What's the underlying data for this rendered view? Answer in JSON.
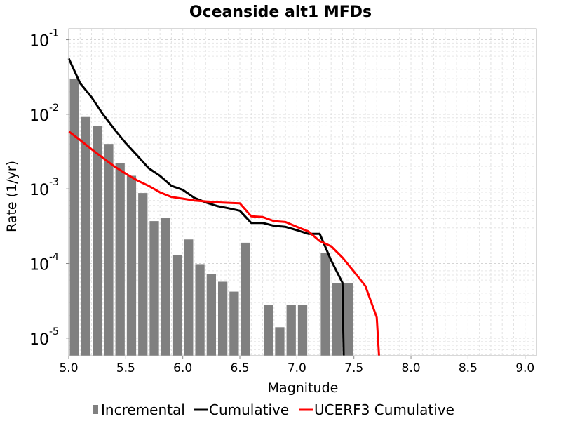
{
  "chart_data": {
    "type": "bar",
    "title": "Oceanside alt1 MFDs",
    "xlabel": "Magnitude",
    "ylabel": "Rate (1/yr)",
    "xlim": [
      5.0,
      9.1
    ],
    "ylim": [
      5.8e-06,
      0.14
    ],
    "yscale": "log",
    "grid": true,
    "legend_position": "bottom",
    "x_ticks": [
      "5.0",
      "5.5",
      "6.0",
      "6.5",
      "7.0",
      "7.5",
      "8.0",
      "8.5",
      "9.0"
    ],
    "y_ticks": [
      {
        "base": "10",
        "exp": "-1"
      },
      {
        "base": "10",
        "exp": "-2"
      },
      {
        "base": "10",
        "exp": "-3"
      },
      {
        "base": "10",
        "exp": "-4"
      },
      {
        "base": "10",
        "exp": "-5"
      }
    ],
    "series": [
      {
        "name": "Incremental",
        "kind": "bar",
        "color": "#808080",
        "x": [
          5.05,
          5.15,
          5.25,
          5.35,
          5.45,
          5.55,
          5.65,
          5.75,
          5.85,
          5.95,
          6.05,
          6.15,
          6.25,
          6.35,
          6.45,
          6.55,
          6.75,
          6.85,
          6.95,
          7.05,
          7.25,
          7.35,
          7.45
        ],
        "y": [
          0.03,
          0.0092,
          0.007,
          0.004,
          0.0022,
          0.0015,
          0.00088,
          0.00037,
          0.00041,
          0.00013,
          0.00021,
          9.8e-05,
          7.3e-05,
          5.7e-05,
          4.2e-05,
          0.00019,
          2.8e-05,
          1.4e-05,
          2.8e-05,
          2.8e-05,
          0.00014,
          5.5e-05,
          5.5e-05
        ]
      },
      {
        "name": "Cumulative",
        "kind": "line",
        "color": "#000000",
        "x": [
          5.0,
          5.1,
          5.2,
          5.3,
          5.4,
          5.5,
          5.6,
          5.7,
          5.8,
          5.9,
          6.0,
          6.1,
          6.2,
          6.3,
          6.4,
          6.5,
          6.6,
          6.7,
          6.8,
          6.9,
          7.0,
          7.1,
          7.2,
          7.3,
          7.4,
          7.41
        ],
        "y": [
          0.056,
          0.026,
          0.017,
          0.01,
          0.0063,
          0.0041,
          0.0028,
          0.0019,
          0.0015,
          0.0011,
          0.00097,
          0.00076,
          0.00066,
          0.00059,
          0.00055,
          0.00051,
          0.00035,
          0.00035,
          0.00032,
          0.00031,
          0.00028,
          0.00025,
          0.00025,
          0.00011,
          5.5e-05,
          5.5e-06
        ]
      },
      {
        "name": "UCERF3 Cumulative",
        "kind": "line",
        "color": "#ff0000",
        "x": [
          5.0,
          5.1,
          5.2,
          5.3,
          5.4,
          5.5,
          5.6,
          5.7,
          5.8,
          5.9,
          6.0,
          6.1,
          6.2,
          6.3,
          6.4,
          6.5,
          6.6,
          6.7,
          6.8,
          6.9,
          7.0,
          7.1,
          7.2,
          7.3,
          7.4,
          7.5,
          7.6,
          7.7,
          7.72
        ],
        "y": [
          0.0059,
          0.0045,
          0.0034,
          0.0026,
          0.002,
          0.0016,
          0.0013,
          0.0011,
          0.0009,
          0.00078,
          0.00074,
          0.0007,
          0.00068,
          0.00066,
          0.00065,
          0.00064,
          0.00043,
          0.00042,
          0.00037,
          0.00036,
          0.00031,
          0.00027,
          0.0002,
          0.00017,
          0.00012,
          7.8e-05,
          5e-05,
          1.9e-05,
          5.5e-06
        ]
      }
    ]
  }
}
